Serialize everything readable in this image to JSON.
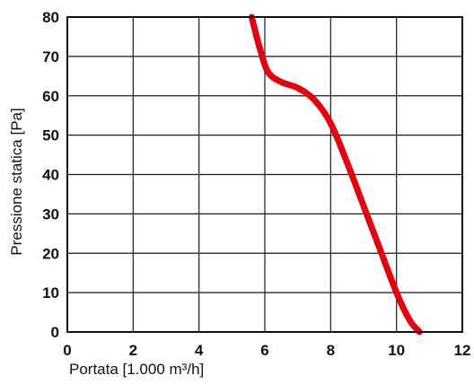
{
  "chart_data": {
    "type": "line",
    "title": "",
    "xlabel": "Portata [1.000 m³/h]",
    "ylabel": "Pressione statica  [Pa]",
    "xlim": [
      0,
      12
    ],
    "ylim": [
      0,
      80
    ],
    "xticks": [
      "0",
      "2",
      "4",
      "6",
      "8",
      "10",
      "12"
    ],
    "yticks": [
      "0",
      "10",
      "20",
      "30",
      "40",
      "50",
      "60",
      "70",
      "80"
    ],
    "grid": true,
    "legend": "none",
    "series": [
      {
        "color": "#e3000f",
        "x": [
          5.6,
          5.85,
          6.1,
          6.5,
          7.0,
          7.5,
          8.0,
          8.5,
          9.0,
          9.5,
          10.0,
          10.4,
          10.7
        ],
        "y": [
          80,
          72,
          66,
          63.5,
          62,
          59,
          53,
          43,
          32,
          21,
          10,
          3,
          0
        ]
      }
    ]
  }
}
